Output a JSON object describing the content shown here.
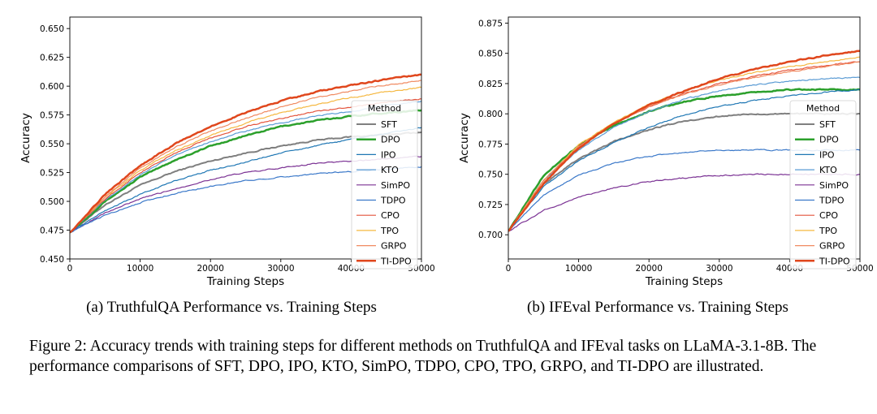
{
  "chart_data": [
    {
      "type": "line",
      "panel": "a",
      "xlabel": "Training Steps",
      "ylabel": "Accuracy",
      "xlim": [
        0,
        50000
      ],
      "ylim": [
        0.45,
        0.66
      ],
      "xticks": [
        0,
        10000,
        20000,
        30000,
        40000,
        50000
      ],
      "xtick_labels": [
        "0",
        "10000",
        "20000",
        "30000",
        "40000",
        "50000"
      ],
      "yticks": [
        0.45,
        0.475,
        0.5,
        0.525,
        0.55,
        0.575,
        0.6,
        0.625,
        0.65
      ],
      "ytick_labels": [
        "0.450",
        "0.475",
        "0.500",
        "0.525",
        "0.550",
        "0.575",
        "0.600",
        "0.625",
        "0.650"
      ],
      "legend_title": "Method",
      "legend_position": "right",
      "x": [
        0,
        5000,
        10000,
        15000,
        20000,
        25000,
        30000,
        35000,
        40000,
        45000,
        50000
      ],
      "series": [
        {
          "name": "SFT",
          "color": "#7f7f7f",
          "width": 2,
          "values": [
            0.473,
            0.497,
            0.514,
            0.526,
            0.535,
            0.542,
            0.548,
            0.553,
            0.556,
            0.558,
            0.56
          ]
        },
        {
          "name": "DPO",
          "color": "#2ca02c",
          "width": 2.5,
          "values": [
            0.473,
            0.5,
            0.521,
            0.536,
            0.548,
            0.557,
            0.565,
            0.57,
            0.574,
            0.577,
            0.579
          ]
        },
        {
          "name": "IPO",
          "color": "#1f77b4",
          "width": 1.2,
          "values": [
            0.473,
            0.492,
            0.506,
            0.518,
            0.527,
            0.534,
            0.542,
            0.548,
            0.554,
            0.559,
            0.564
          ]
        },
        {
          "name": "KTO",
          "color": "#5a9bd4",
          "width": 1.2,
          "values": [
            0.473,
            0.501,
            0.523,
            0.54,
            0.552,
            0.561,
            0.568,
            0.574,
            0.578,
            0.583,
            0.587
          ]
        },
        {
          "name": "SimPO",
          "color": "#7b3294",
          "width": 1.2,
          "values": [
            0.473,
            0.49,
            0.502,
            0.511,
            0.519,
            0.525,
            0.529,
            0.533,
            0.535,
            0.537,
            0.539
          ]
        },
        {
          "name": "TDPO",
          "color": "#3a78c9",
          "width": 1.2,
          "values": [
            0.473,
            0.488,
            0.499,
            0.507,
            0.513,
            0.518,
            0.521,
            0.524,
            0.526,
            0.528,
            0.53
          ]
        },
        {
          "name": "CPO",
          "color": "#e4543c",
          "width": 1.2,
          "values": [
            0.473,
            0.502,
            0.525,
            0.542,
            0.555,
            0.565,
            0.572,
            0.578,
            0.582,
            0.586,
            0.589
          ]
        },
        {
          "name": "TPO",
          "color": "#f5b841",
          "width": 1.2,
          "values": [
            0.473,
            0.503,
            0.527,
            0.544,
            0.557,
            0.568,
            0.577,
            0.584,
            0.59,
            0.595,
            0.599
          ]
        },
        {
          "name": "GRPO",
          "color": "#f08a61",
          "width": 1.2,
          "values": [
            0.473,
            0.504,
            0.529,
            0.547,
            0.561,
            0.572,
            0.582,
            0.59,
            0.596,
            0.601,
            0.605
          ]
        },
        {
          "name": "TI-DPO",
          "color": "#e0471d",
          "width": 2.5,
          "values": [
            0.473,
            0.506,
            0.531,
            0.55,
            0.565,
            0.577,
            0.587,
            0.595,
            0.601,
            0.606,
            0.61
          ]
        }
      ]
    },
    {
      "type": "line",
      "panel": "b",
      "xlabel": "Training Steps",
      "ylabel": "Accuracy",
      "xlim": [
        0,
        50000
      ],
      "ylim": [
        0.68,
        0.88
      ],
      "xticks": [
        0,
        10000,
        20000,
        30000,
        40000,
        50000
      ],
      "xtick_labels": [
        "0",
        "10000",
        "20000",
        "30000",
        "40000",
        "50000"
      ],
      "yticks": [
        0.7,
        0.725,
        0.75,
        0.775,
        0.8,
        0.825,
        0.85,
        0.875
      ],
      "ytick_labels": [
        "0.700",
        "0.725",
        "0.750",
        "0.775",
        "0.800",
        "0.825",
        "0.850",
        "0.875"
      ],
      "legend_title": "Method",
      "legend_position": "right",
      "x": [
        0,
        5000,
        10000,
        15000,
        20000,
        25000,
        30000,
        35000,
        40000,
        45000,
        50000
      ],
      "series": [
        {
          "name": "SFT",
          "color": "#7f7f7f",
          "width": 2,
          "values": [
            0.703,
            0.742,
            0.763,
            0.777,
            0.787,
            0.794,
            0.798,
            0.8,
            0.8,
            0.8,
            0.8
          ]
        },
        {
          "name": "DPO",
          "color": "#2ca02c",
          "width": 2.5,
          "values": [
            0.703,
            0.749,
            0.774,
            0.79,
            0.802,
            0.81,
            0.815,
            0.818,
            0.82,
            0.82,
            0.82
          ]
        },
        {
          "name": "IPO",
          "color": "#1f77b4",
          "width": 1.2,
          "values": [
            0.703,
            0.74,
            0.761,
            0.776,
            0.789,
            0.799,
            0.806,
            0.811,
            0.815,
            0.818,
            0.82
          ]
        },
        {
          "name": "KTO",
          "color": "#5a9bd4",
          "width": 1.2,
          "values": [
            0.703,
            0.745,
            0.77,
            0.789,
            0.802,
            0.812,
            0.819,
            0.824,
            0.827,
            0.829,
            0.83
          ]
        },
        {
          "name": "SimPO",
          "color": "#7b3294",
          "width": 1.2,
          "values": [
            0.703,
            0.72,
            0.731,
            0.739,
            0.744,
            0.747,
            0.749,
            0.75,
            0.75,
            0.75,
            0.75
          ]
        },
        {
          "name": "TDPO",
          "color": "#3a78c9",
          "width": 1.2,
          "values": [
            0.703,
            0.733,
            0.749,
            0.759,
            0.765,
            0.768,
            0.77,
            0.77,
            0.77,
            0.77,
            0.77
          ]
        },
        {
          "name": "CPO",
          "color": "#e4543c",
          "width": 1.2,
          "values": [
            0.703,
            0.745,
            0.773,
            0.792,
            0.806,
            0.817,
            0.825,
            0.831,
            0.836,
            0.84,
            0.843
          ]
        },
        {
          "name": "TPO",
          "color": "#f5b841",
          "width": 1.2,
          "values": [
            0.703,
            0.745,
            0.774,
            0.793,
            0.808,
            0.819,
            0.828,
            0.834,
            0.839,
            0.843,
            0.847
          ]
        },
        {
          "name": "GRPO",
          "color": "#f08a61",
          "width": 1.2,
          "values": [
            0.703,
            0.745,
            0.773,
            0.792,
            0.806,
            0.816,
            0.824,
            0.83,
            0.835,
            0.839,
            0.843
          ]
        },
        {
          "name": "TI-DPO",
          "color": "#e0471d",
          "width": 2.5,
          "values": [
            0.703,
            0.742,
            0.772,
            0.792,
            0.807,
            0.819,
            0.829,
            0.837,
            0.843,
            0.848,
            0.852
          ]
        }
      ]
    }
  ],
  "captions": {
    "a": "(a) TruthfulQA Performance vs. Training Steps",
    "b": "(b) IFEval Performance vs. Training Steps",
    "figure": "Figure 2: Accuracy trends with training steps for different methods on TruthfulQA and IFEval tasks on LLaMA-3.1-8B. The performance comparisons of SFT, DPO, IPO, KTO, SimPO, TDPO, CPO, TPO, GRPO, and TI-DPO are illustrated."
  }
}
